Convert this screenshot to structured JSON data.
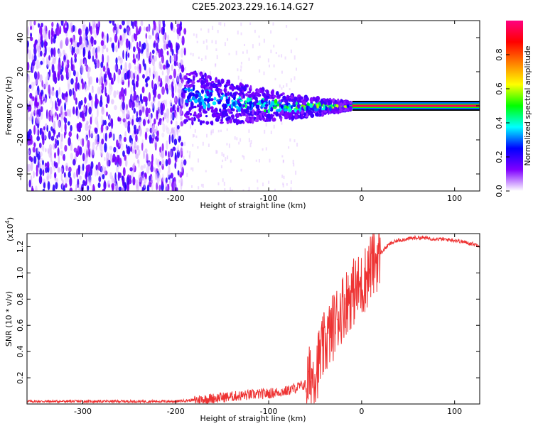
{
  "figure_title": "C2E5.2023.229.16.14.G27",
  "chart_data": [
    {
      "type": "heatmap",
      "title": "C2E5.2023.229.16.14.G27",
      "xlabel": "Height of straight line (km)",
      "ylabel": "Frequency (Hz)",
      "xlim": [
        -360,
        127
      ],
      "ylim": [
        -50,
        50
      ],
      "xticks": [
        -300,
        -200,
        -100,
        0,
        100
      ],
      "yticks": [
        -40,
        -20,
        0,
        20,
        40
      ],
      "xtick_labels": [
        "-300",
        "-200",
        "-100",
        "0",
        "100"
      ],
      "ytick_labels": [
        "-40",
        "-20",
        "0",
        "20",
        "40"
      ],
      "colorbar": {
        "label": "Normalized spectral amplitude",
        "range": [
          0,
          1
        ],
        "ticks": [
          0.0,
          0.2,
          0.4,
          0.6,
          0.8
        ],
        "tick_labels": [
          "0.0",
          "0.2",
          "0.4",
          "0.6",
          "0.8"
        ],
        "colormap": [
          "#ffffff",
          "#8000ff",
          "#0000ff",
          "#00ffff",
          "#00ff00",
          "#ffff00",
          "#ff8000",
          "#ff0000",
          "#ff0080"
        ]
      },
      "features": {
        "noise_region_x": [
          -360,
          -190
        ],
        "noise_amplitude": 0.15,
        "convergence_region_x": [
          -190,
          -10
        ],
        "carrier_line_x": [
          -10,
          127
        ],
        "carrier_frequency_hz": 0,
        "carrier_amplitude": 0.95
      }
    },
    {
      "type": "line",
      "xlabel": "Height of straight line (km)",
      "ylabel": "SNR (10 * v/v)",
      "yscale_label": "(x10",
      "yscale_exponent": "4",
      "yscale_suffix": ")",
      "xlim": [
        -360,
        127
      ],
      "ylim": [
        0,
        1.3
      ],
      "xticks": [
        -300,
        -200,
        -100,
        0,
        100
      ],
      "yticks": [
        0.2,
        0.4,
        0.6,
        0.8,
        1.0,
        1.2
      ],
      "xtick_labels": [
        "-300",
        "-200",
        "-100",
        "0",
        "100"
      ],
      "ytick_labels": [
        "0.2",
        "0.4",
        "0.6",
        "0.8",
        "1.0",
        "1.2"
      ],
      "color": "#ee3333",
      "series": [
        {
          "x": [
            -360,
            -300,
            -250,
            -200,
            -180,
            -150,
            -120,
            -100,
            -80,
            -60,
            -50,
            -40,
            -30,
            -20,
            -10,
            0,
            10,
            20,
            30,
            40,
            60,
            80,
            100,
            127
          ],
          "values": [
            0.02,
            0.02,
            0.02,
            0.02,
            0.03,
            0.05,
            0.07,
            0.08,
            0.1,
            0.15,
            0.25,
            0.45,
            0.6,
            0.75,
            0.85,
            0.9,
            1.05,
            1.15,
            1.22,
            1.25,
            1.27,
            1.26,
            1.25,
            1.21
          ]
        }
      ]
    }
  ]
}
